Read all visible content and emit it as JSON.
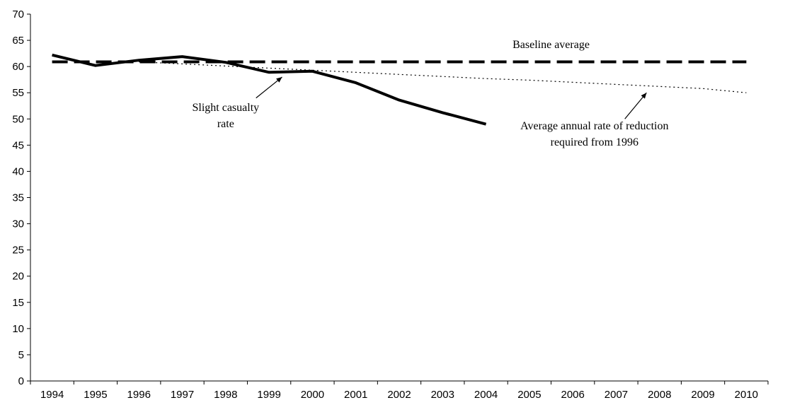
{
  "chart_data": {
    "type": "line",
    "title": "",
    "xlabel": "",
    "ylabel": "",
    "ylim": [
      0,
      70
    ],
    "y_ticks": [
      "0",
      "5",
      "10",
      "15",
      "20",
      "25",
      "30",
      "35",
      "40",
      "45",
      "50",
      "55",
      "60",
      "65",
      "70"
    ],
    "categories": [
      "1994",
      "1995",
      "1996",
      "1997",
      "1998",
      "1999",
      "2000",
      "2001",
      "2002",
      "2003",
      "2004",
      "2005",
      "2006",
      "2007",
      "2008",
      "2009",
      "2010"
    ],
    "grid": false,
    "legend": "none",
    "series": [
      {
        "name": "Slight casualty rate",
        "style": "solid-thick",
        "color": "#000000",
        "values": [
          62.2,
          60.2,
          61.2,
          61.9,
          60.8,
          58.9,
          59.1,
          56.9,
          53.6,
          51.2,
          49.0,
          null,
          null,
          null,
          null,
          null,
          null
        ]
      },
      {
        "name": "Baseline average",
        "style": "dashed-thick",
        "color": "#000000",
        "values": [
          60.9,
          60.9,
          60.9,
          60.9,
          60.9,
          60.9,
          60.9,
          60.9,
          60.9,
          60.9,
          60.9,
          60.9,
          60.9,
          60.9,
          60.9,
          60.9,
          60.9
        ]
      },
      {
        "name": "Average annual rate of reduction required from 1996",
        "style": "dotted-thin",
        "color": "#000000",
        "values": [
          null,
          null,
          60.9,
          60.5,
          60.1,
          59.7,
          59.3,
          58.9,
          58.5,
          58.1,
          57.7,
          57.4,
          57.0,
          56.6,
          56.2,
          55.8,
          55.0
        ]
      }
    ],
    "annotations": [
      {
        "id": "baseline",
        "lines": [
          "Baseline average"
        ],
        "x": "2005.5",
        "y": 63.5,
        "align": "middle"
      },
      {
        "id": "slight",
        "lines": [
          "Slight casualty",
          "rate"
        ],
        "x": "1998",
        "y": 51.5,
        "align": "middle",
        "arrow_from": [
          "1998.7",
          54.0
        ],
        "arrow_to": [
          "1999.3",
          58.0
        ]
      },
      {
        "id": "reduction",
        "lines": [
          "Average annual rate of reduction",
          "required from 1996"
        ],
        "x": "2006.5",
        "y": 48.0,
        "align": "middle",
        "arrow_from": [
          "2007.2",
          50.0
        ],
        "arrow_to": [
          "2007.7",
          55.0
        ]
      }
    ]
  }
}
